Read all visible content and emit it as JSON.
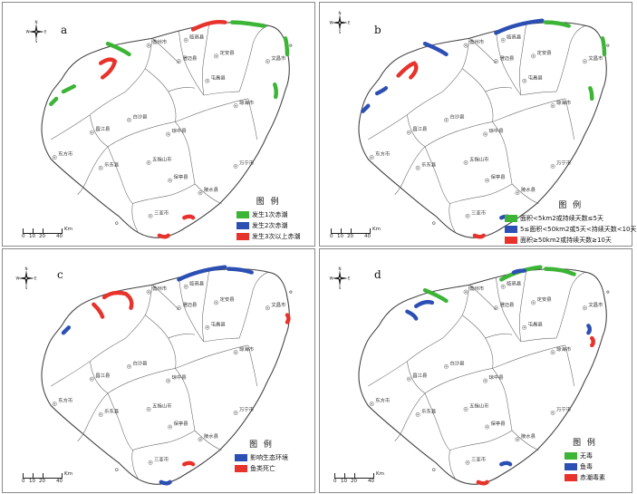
{
  "colors": {
    "green": "#3cb436",
    "blue": "#2c4fb4",
    "red": "#e8322c",
    "outline": "#444444",
    "district": "#6a6a6a"
  },
  "compass_letters": {
    "n": "N",
    "s": "S",
    "e": "E",
    "w": "W"
  },
  "scale_bar": {
    "labels": [
      "0",
      "10",
      "20",
      "40"
    ],
    "unit": "Km"
  },
  "legend_title": "图 例",
  "place_names": [
    "儋州市",
    "临高县",
    "澄迈县",
    "定安县",
    "文昌市",
    "屯昌县",
    "琼海市",
    "白沙县",
    "琼中县",
    "昌江县",
    "东方市",
    "乐东县",
    "五指山市",
    "保亭县",
    "陵水县",
    "万宁市",
    "三亚市"
  ],
  "panels": [
    {
      "letter": "a",
      "legend": [
        {
          "label": "发生1次赤潮",
          "color": "green"
        },
        {
          "label": "发生2次赤潮",
          "color": "blue"
        },
        {
          "label": "发生3次以上赤潮",
          "color": "red"
        }
      ]
    },
    {
      "letter": "b",
      "legend": [
        {
          "label": "面积<5km2或持续天数≤5天",
          "color": "green"
        },
        {
          "label": "5≤面积<50km2或5天<持续天数<10天",
          "color": "blue"
        },
        {
          "label": "面积≥50km2或持续天数≥10天",
          "color": "red"
        }
      ]
    },
    {
      "letter": "c",
      "legend": [
        {
          "label": "影响生态环境",
          "color": "blue"
        },
        {
          "label": "鱼类死亡",
          "color": "red"
        }
      ]
    },
    {
      "letter": "d",
      "legend": [
        {
          "label": "无毒",
          "color": "green"
        },
        {
          "label": "鱼毒",
          "color": "blue"
        },
        {
          "label": "赤潮毒素",
          "color": "red"
        }
      ]
    }
  ]
}
